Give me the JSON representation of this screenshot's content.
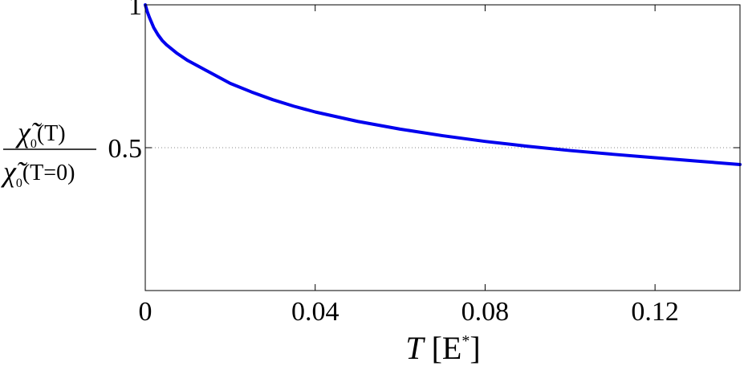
{
  "chart_data": {
    "type": "line",
    "xlabel": {
      "symbol": "T",
      "unit": "[E",
      "superscript": "*",
      "close": "]"
    },
    "ylabel": {
      "numerator": {
        "symbol": "χ̃",
        "subscript": "0",
        "argument": "(T)"
      },
      "denominator": {
        "symbol": "χ̃",
        "subscript": "0",
        "argument": "(T=0)"
      }
    },
    "xlim": [
      0,
      0.14
    ],
    "ylim": [
      0,
      1
    ],
    "x_ticks": [
      {
        "value": 0,
        "label": "0"
      },
      {
        "value": 0.04,
        "label": "0.04"
      },
      {
        "value": 0.08,
        "label": "0.08"
      },
      {
        "value": 0.12,
        "label": "0.12"
      }
    ],
    "y_ticks": [
      {
        "value": 0.5,
        "label": "0.5"
      },
      {
        "value": 1,
        "label": "1"
      }
    ],
    "grid": "horizontal dotted at y ticks",
    "series": [
      {
        "color": "#0000ee",
        "x": [
          0,
          0.0005,
          0.001,
          0.002,
          0.003,
          0.004,
          0.005,
          0.0075,
          0.01,
          0.0125,
          0.015,
          0.02,
          0.025,
          0.03,
          0.035,
          0.04,
          0.05,
          0.06,
          0.07,
          0.08,
          0.09,
          0.1,
          0.11,
          0.12,
          0.13,
          0.14
        ],
        "y": [
          1.0,
          0.975,
          0.955,
          0.92,
          0.895,
          0.875,
          0.86,
          0.83,
          0.805,
          0.785,
          0.765,
          0.725,
          0.695,
          0.668,
          0.645,
          0.625,
          0.592,
          0.565,
          0.542,
          0.522,
          0.505,
          0.49,
          0.477,
          0.465,
          0.453,
          0.441
        ]
      }
    ]
  }
}
